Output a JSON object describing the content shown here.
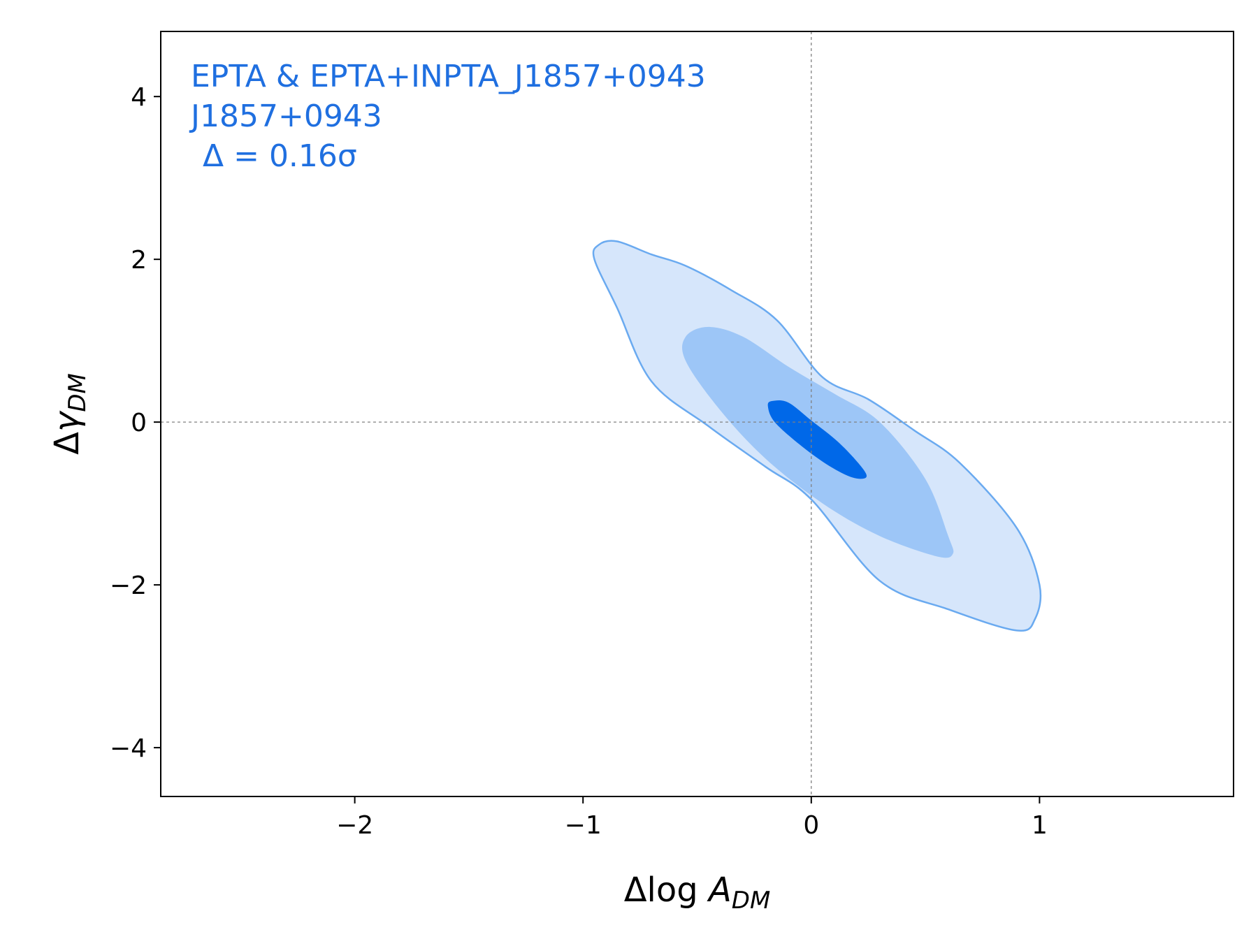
{
  "chart_data": {
    "type": "contour",
    "xlabel": {
      "base": "Δlog ",
      "main": "A",
      "sub": "DM"
    },
    "ylabel": {
      "base": "Δ",
      "main": "γ",
      "sub": "DM"
    },
    "xlim": [
      -2.85,
      1.85
    ],
    "ylim": [
      -4.6,
      4.8
    ],
    "xticks": [
      -2,
      -1,
      0,
      1
    ],
    "xtick_labels": [
      "−2",
      "−1",
      "0",
      "1"
    ],
    "yticks": [
      -4,
      -2,
      0,
      2,
      4
    ],
    "ytick_labels": [
      "−4",
      "−2",
      "0",
      "2",
      "4"
    ],
    "reference_lines": {
      "x": 0,
      "y": 0,
      "style": "dashed",
      "color": "#808080"
    },
    "annotation": {
      "lines": [
        "EPTA & EPTA+INPTA_J1857+0943",
        "J1857+0943"
      ],
      "delta_text": "Δ = 0.16σ",
      "position": "top-left",
      "color": "#1f6fe0"
    },
    "contours": [
      {
        "level": "outer",
        "fill": "#d6e6fb",
        "stroke": "#6aaaf0",
        "points": [
          [
            -0.93,
            2.18
          ],
          [
            -0.85,
            2.22
          ],
          [
            -0.7,
            2.06
          ],
          [
            -0.55,
            1.92
          ],
          [
            -0.35,
            1.62
          ],
          [
            -0.15,
            1.25
          ],
          [
            0.05,
            0.55
          ],
          [
            0.25,
            0.28
          ],
          [
            0.45,
            -0.1
          ],
          [
            0.65,
            -0.5
          ],
          [
            0.9,
            -1.3
          ],
          [
            1.0,
            -2.0
          ],
          [
            0.98,
            -2.42
          ],
          [
            0.9,
            -2.56
          ],
          [
            0.6,
            -2.3
          ],
          [
            0.3,
            -1.95
          ],
          [
            0.0,
            -0.95
          ],
          [
            -0.2,
            -0.55
          ],
          [
            -0.45,
            -0.05
          ],
          [
            -0.7,
            0.5
          ],
          [
            -0.85,
            1.4
          ],
          [
            -0.95,
            2.0
          ]
        ]
      },
      {
        "level": "middle",
        "fill": "#9dc6f7",
        "stroke": "none",
        "points": [
          [
            -0.55,
            1.05
          ],
          [
            -0.45,
            1.17
          ],
          [
            -0.3,
            1.05
          ],
          [
            -0.1,
            0.68
          ],
          [
            0.1,
            0.35
          ],
          [
            0.3,
            0.0
          ],
          [
            0.5,
            -0.7
          ],
          [
            0.6,
            -1.4
          ],
          [
            0.62,
            -1.62
          ],
          [
            0.55,
            -1.65
          ],
          [
            0.3,
            -1.4
          ],
          [
            0.05,
            -1.0
          ],
          [
            -0.2,
            -0.45
          ],
          [
            -0.4,
            0.15
          ],
          [
            -0.55,
            0.75
          ]
        ]
      },
      {
        "level": "inner",
        "fill": "#0068e8",
        "stroke": "none",
        "points": [
          [
            -0.17,
            0.26
          ],
          [
            -0.1,
            0.24
          ],
          [
            0.0,
            0.02
          ],
          [
            0.12,
            -0.25
          ],
          [
            0.22,
            -0.55
          ],
          [
            0.24,
            -0.68
          ],
          [
            0.18,
            -0.68
          ],
          [
            0.08,
            -0.54
          ],
          [
            -0.04,
            -0.3
          ],
          [
            -0.16,
            0.0
          ],
          [
            -0.19,
            0.2
          ]
        ]
      }
    ]
  }
}
